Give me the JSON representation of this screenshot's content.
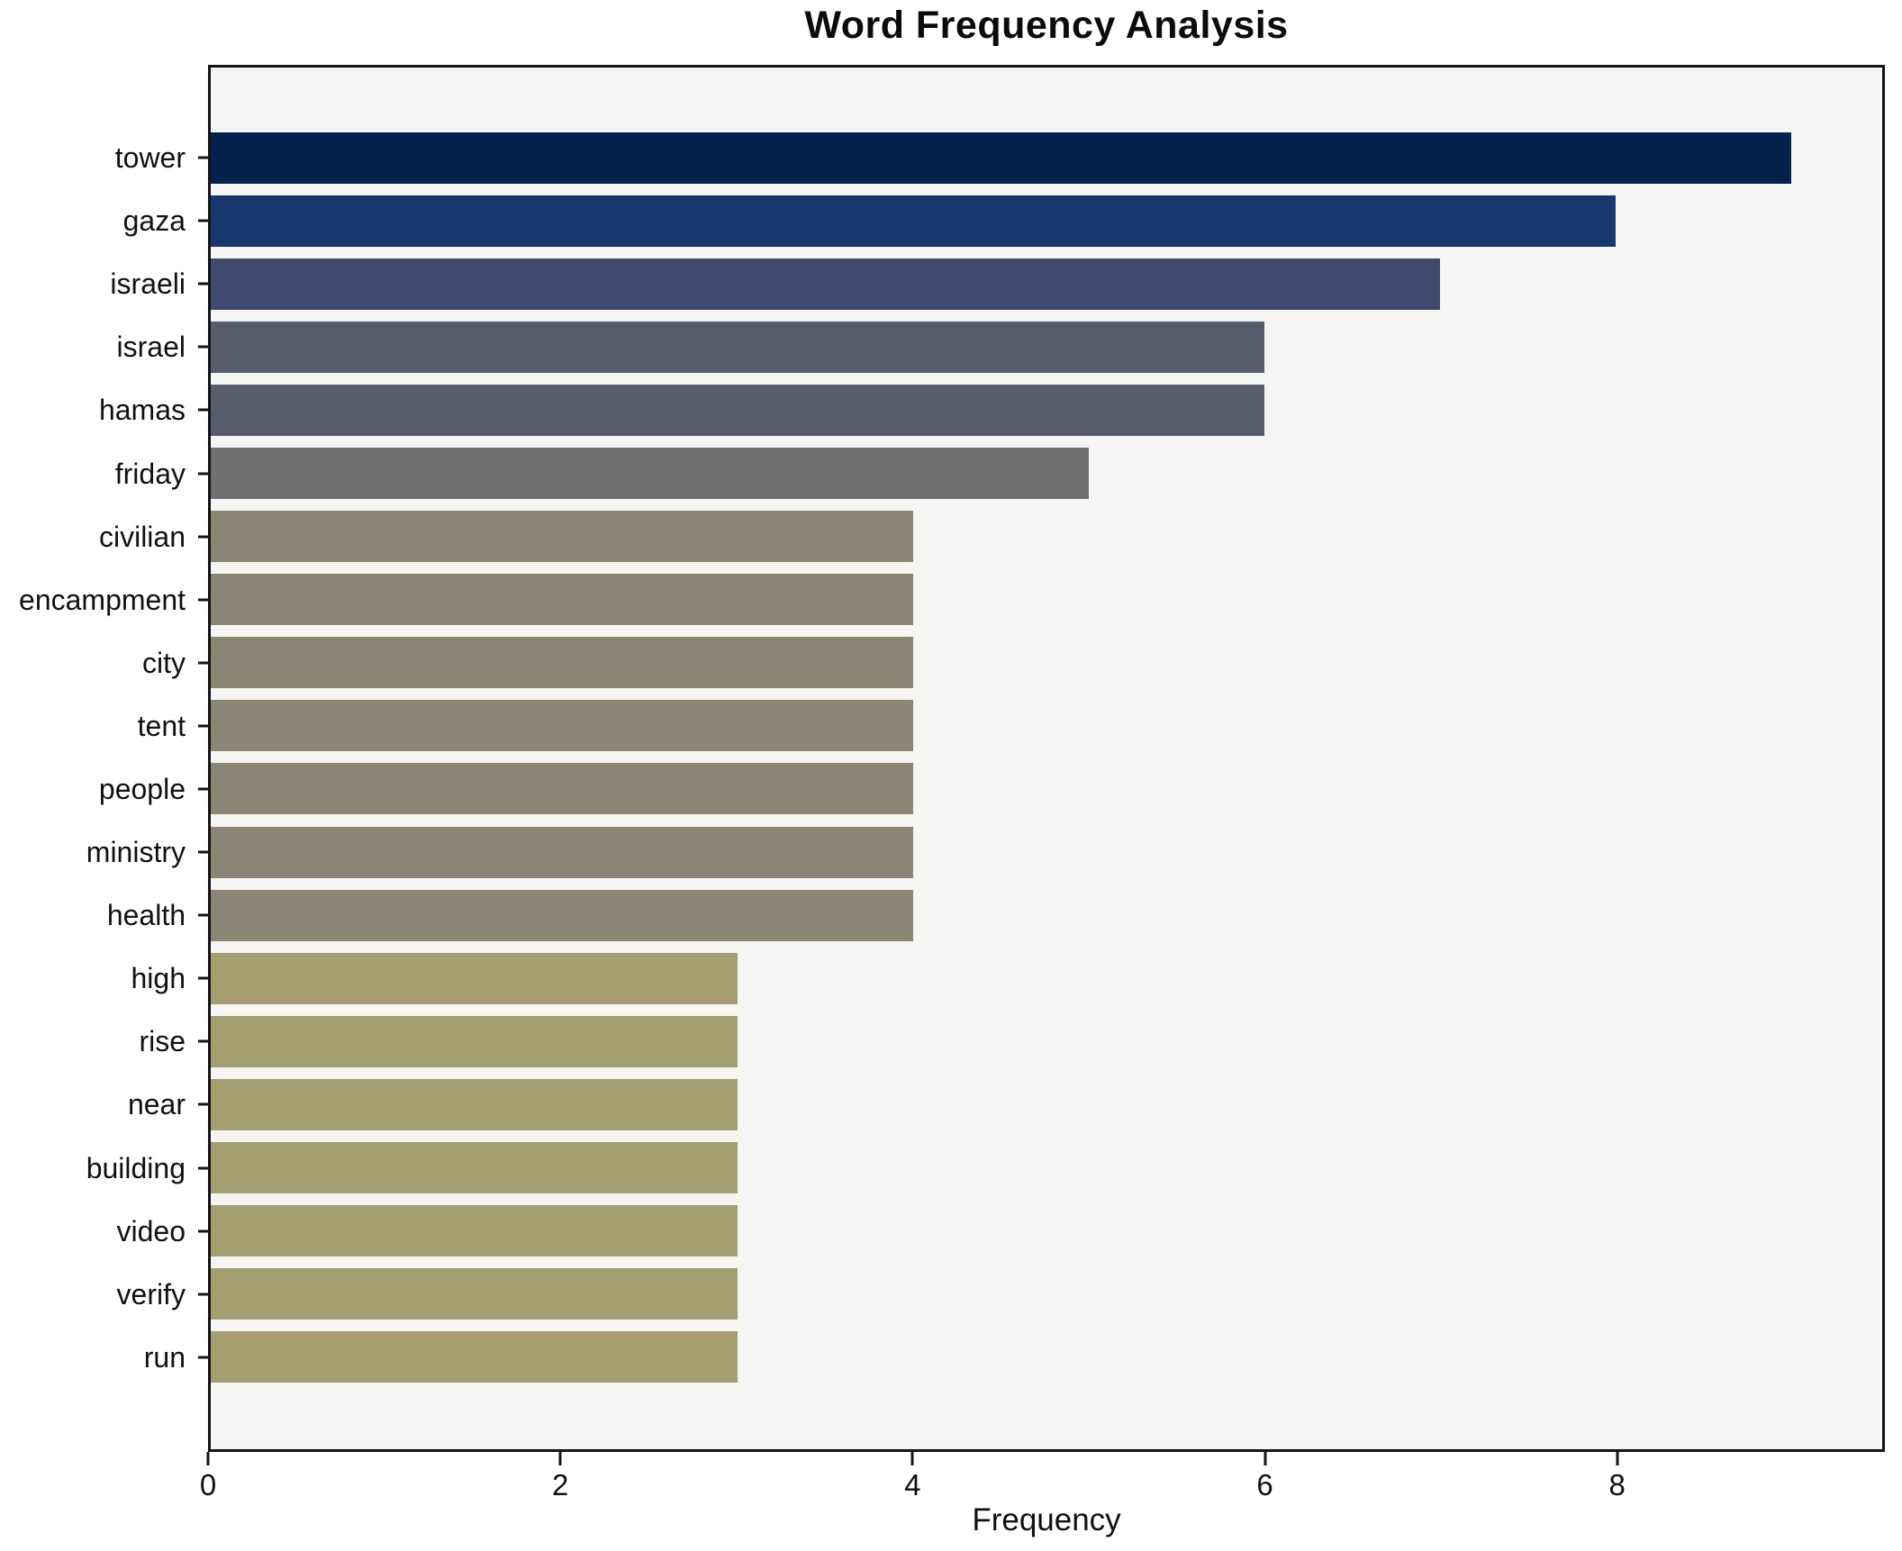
{
  "title": "Word Frequency Analysis",
  "chart_data": {
    "type": "bar",
    "orientation": "horizontal",
    "title": "Word Frequency Analysis",
    "xlabel": "Frequency",
    "ylabel": "",
    "categories": [
      "tower",
      "gaza",
      "israeli",
      "israel",
      "hamas",
      "friday",
      "civilian",
      "encampment",
      "city",
      "tent",
      "people",
      "ministry",
      "health",
      "high",
      "rise",
      "near",
      "building",
      "video",
      "verify",
      "run"
    ],
    "values": [
      9,
      8,
      7,
      6,
      6,
      5,
      4,
      4,
      4,
      4,
      4,
      4,
      4,
      3,
      3,
      3,
      3,
      3,
      3,
      3
    ],
    "xticks": [
      0,
      2,
      4,
      6,
      8
    ],
    "xlim": [
      0,
      9.52
    ],
    "grid": false,
    "legend": null,
    "colors_by_value": {
      "9": "#03214d",
      "8": "#17376e",
      "7": "#3e4b6f",
      "6": "#575d6c",
      "5": "#6e7072",
      "4": "#8a8673",
      "3": "#a59e71"
    },
    "plot_background": "#f5f5f4",
    "figure_background": "#ffffff",
    "axis_color": "#121418"
  }
}
